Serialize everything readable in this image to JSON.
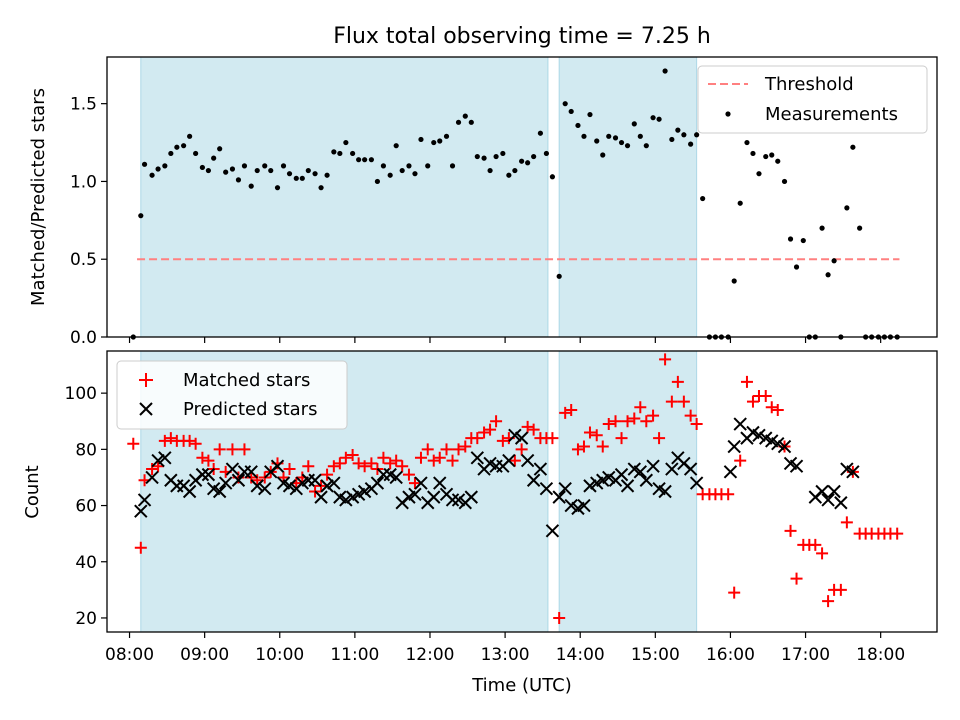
{
  "figure": {
    "title": "Flux total observing time = 7.25 h",
    "xlabel": "Time (UTC)"
  },
  "colors": {
    "shade": "#add8e6",
    "threshold": "#ff8080",
    "matched": "#ff0000",
    "predicted": "#000000",
    "measurement": "#000000"
  },
  "chart_data": [
    {
      "type": "scatter",
      "panel": "top",
      "ylabel": "Matched/Predicted stars",
      "ylim": [
        0,
        1.8
      ],
      "yticks": [
        0.0,
        0.5,
        1.0,
        1.5
      ],
      "ytick_labels": [
        "0.0",
        "0.5",
        "1.0",
        "1.5"
      ],
      "xlim": [
        7.7,
        18.75
      ],
      "shaded_intervals": [
        [
          8.15,
          13.57
        ],
        [
          13.72,
          15.55
        ]
      ],
      "legend_position": "top-right",
      "threshold": {
        "name": "Threshold",
        "value": 0.5,
        "x_range": [
          8.1,
          18.25
        ],
        "style": "dashed"
      },
      "series": [
        {
          "name": "Measurements",
          "x": [
            8.05,
            8.15,
            8.2,
            8.3,
            8.38,
            8.47,
            8.55,
            8.63,
            8.72,
            8.8,
            8.88,
            8.97,
            9.05,
            9.12,
            9.2,
            9.28,
            9.37,
            9.45,
            9.53,
            9.62,
            9.7,
            9.8,
            9.88,
            9.97,
            10.05,
            10.13,
            10.22,
            10.3,
            10.38,
            10.47,
            10.55,
            10.63,
            10.72,
            10.8,
            10.88,
            10.97,
            11.05,
            11.13,
            11.22,
            11.3,
            11.38,
            11.47,
            11.55,
            11.63,
            11.72,
            11.8,
            11.88,
            11.97,
            12.05,
            12.13,
            12.22,
            12.3,
            12.38,
            12.47,
            12.55,
            12.63,
            12.72,
            12.8,
            12.88,
            12.97,
            13.05,
            13.13,
            13.22,
            13.3,
            13.38,
            13.47,
            13.55,
            13.63,
            13.72,
            13.8,
            13.88,
            13.97,
            14.05,
            14.13,
            14.22,
            14.3,
            14.38,
            14.47,
            14.55,
            14.63,
            14.72,
            14.8,
            14.88,
            14.97,
            15.05,
            15.13,
            15.22,
            15.3,
            15.38,
            15.47,
            15.55,
            15.63,
            15.72,
            15.8,
            15.88,
            15.97,
            16.05,
            16.13,
            16.22,
            16.3,
            16.38,
            16.47,
            16.55,
            16.63,
            16.72,
            16.8,
            16.88,
            16.97,
            17.05,
            17.13,
            17.22,
            17.3,
            17.38,
            17.47,
            17.55,
            17.63,
            17.72,
            17.8,
            17.88,
            17.97,
            18.05,
            18.13,
            18.22
          ],
          "y": [
            0.0,
            0.78,
            1.11,
            1.04,
            1.08,
            1.1,
            1.18,
            1.22,
            1.23,
            1.29,
            1.18,
            1.09,
            1.07,
            1.15,
            1.21,
            1.06,
            1.08,
            1.01,
            1.1,
            0.97,
            1.07,
            1.1,
            1.07,
            0.96,
            1.1,
            1.05,
            1.02,
            1.02,
            1.07,
            1.05,
            0.96,
            1.04,
            1.19,
            1.18,
            1.25,
            1.18,
            1.14,
            1.14,
            1.14,
            1.0,
            1.1,
            1.04,
            1.23,
            1.07,
            1.1,
            1.05,
            1.27,
            1.1,
            1.25,
            1.26,
            1.29,
            1.1,
            1.38,
            1.42,
            1.38,
            1.16,
            1.15,
            1.07,
            1.16,
            1.18,
            1.04,
            1.07,
            1.13,
            1.12,
            1.16,
            1.31,
            1.18,
            1.03,
            0.39,
            1.5,
            1.45,
            1.36,
            1.29,
            1.43,
            1.26,
            1.17,
            1.29,
            1.28,
            1.25,
            1.23,
            1.37,
            1.29,
            1.23,
            1.41,
            1.4,
            1.71,
            1.27,
            1.33,
            1.3,
            1.24,
            1.3,
            0.89,
            0.0,
            0.0,
            0.0,
            0.0,
            0.36,
            0.86,
            1.25,
            1.18,
            1.05,
            1.16,
            1.17,
            1.13,
            1.0,
            0.63,
            0.45,
            0.62,
            0.0,
            0.0,
            0.7,
            0.4,
            0.49,
            0.0,
            0.83,
            1.22,
            0.7,
            0.0,
            0.0,
            0.0,
            0.0,
            0.0,
            0.0
          ]
        }
      ]
    },
    {
      "type": "scatter",
      "panel": "bottom",
      "ylabel": "Count",
      "ylim": [
        15,
        115
      ],
      "yticks": [
        20,
        40,
        60,
        80,
        100
      ],
      "ytick_labels": [
        "20",
        "40",
        "60",
        "80",
        "100"
      ],
      "xlim": [
        7.7,
        18.75
      ],
      "xticks": [
        8,
        9,
        10,
        11,
        12,
        13,
        14,
        15,
        16,
        17,
        18
      ],
      "xtick_labels": [
        "08:00",
        "09:00",
        "10:00",
        "11:00",
        "12:00",
        "13:00",
        "14:00",
        "15:00",
        "16:00",
        "17:00",
        "18:00"
      ],
      "shaded_intervals": [
        [
          8.15,
          13.57
        ],
        [
          13.72,
          15.55
        ]
      ],
      "legend_position": "top-left",
      "series": [
        {
          "name": "Matched stars",
          "marker": "plus",
          "x": [
            8.05,
            8.15,
            8.2,
            8.3,
            8.38,
            8.47,
            8.55,
            8.63,
            8.72,
            8.8,
            8.88,
            8.97,
            9.05,
            9.12,
            9.2,
            9.28,
            9.37,
            9.45,
            9.53,
            9.62,
            9.7,
            9.8,
            9.88,
            9.97,
            10.05,
            10.13,
            10.22,
            10.3,
            10.38,
            10.47,
            10.55,
            10.63,
            10.72,
            10.8,
            10.88,
            10.97,
            11.05,
            11.13,
            11.22,
            11.3,
            11.38,
            11.47,
            11.55,
            11.63,
            11.72,
            11.8,
            11.88,
            11.97,
            12.05,
            12.13,
            12.22,
            12.3,
            12.38,
            12.47,
            12.55,
            12.63,
            12.72,
            12.8,
            12.88,
            12.97,
            13.05,
            13.13,
            13.22,
            13.3,
            13.38,
            13.47,
            13.55,
            13.63,
            13.72,
            13.8,
            13.88,
            13.97,
            14.05,
            14.13,
            14.22,
            14.3,
            14.38,
            14.47,
            14.55,
            14.63,
            14.72,
            14.8,
            14.88,
            14.97,
            15.05,
            15.13,
            15.22,
            15.3,
            15.38,
            15.47,
            15.55,
            15.63,
            15.72,
            15.8,
            15.88,
            15.97,
            16.05,
            16.13,
            16.22,
            16.3,
            16.38,
            16.47,
            16.55,
            16.63,
            16.72,
            16.8,
            16.88,
            16.97,
            17.05,
            17.13,
            17.22,
            17.3,
            17.38,
            17.47,
            17.55,
            17.63,
            17.72,
            17.8,
            17.88,
            17.97,
            18.05,
            18.13,
            18.22
          ],
          "y": [
            82,
            45,
            69,
            73,
            74,
            83,
            84,
            83,
            83,
            83,
            82,
            77,
            76,
            73,
            80,
            72,
            80,
            70,
            80,
            70,
            69,
            70,
            72,
            75,
            70,
            73,
            68,
            70,
            74,
            65,
            67,
            71,
            74,
            75,
            77,
            78,
            75,
            74,
            75,
            73,
            77,
            75,
            76,
            74,
            71,
            68,
            77,
            80,
            76,
            77,
            80,
            76,
            80,
            81,
            84,
            84,
            86,
            87,
            90,
            83,
            84,
            76,
            80,
            88,
            87,
            84,
            84,
            84,
            20,
            93,
            94,
            80,
            81,
            86,
            85,
            81,
            89,
            90,
            84,
            90,
            91,
            95,
            90,
            92,
            84,
            112,
            97,
            104,
            97,
            92,
            89,
            64,
            64,
            64,
            64,
            64,
            29,
            76,
            104,
            97,
            99,
            99,
            95,
            94,
            81,
            51,
            34,
            46,
            46,
            46,
            43,
            26,
            30,
            30,
            54,
            72,
            50,
            50,
            50,
            50,
            50,
            50,
            50
          ]
        },
        {
          "name": "Predicted stars",
          "marker": "x",
          "x": [
            8.15,
            8.2,
            8.3,
            8.38,
            8.47,
            8.55,
            8.63,
            8.72,
            8.8,
            8.88,
            8.97,
            9.05,
            9.12,
            9.2,
            9.28,
            9.37,
            9.45,
            9.53,
            9.62,
            9.7,
            9.8,
            9.88,
            9.97,
            10.05,
            10.13,
            10.22,
            10.3,
            10.38,
            10.47,
            10.55,
            10.63,
            10.72,
            10.8,
            10.88,
            10.97,
            11.05,
            11.13,
            11.22,
            11.3,
            11.38,
            11.47,
            11.55,
            11.63,
            11.72,
            11.8,
            11.88,
            11.97,
            12.05,
            12.13,
            12.22,
            12.3,
            12.38,
            12.47,
            12.55,
            12.63,
            12.72,
            12.8,
            12.88,
            12.97,
            13.05,
            13.13,
            13.22,
            13.3,
            13.38,
            13.47,
            13.55,
            13.63,
            13.72,
            13.8,
            13.88,
            13.97,
            14.05,
            14.13,
            14.22,
            14.3,
            14.38,
            14.47,
            14.55,
            14.63,
            14.72,
            14.8,
            14.88,
            14.97,
            15.05,
            15.13,
            15.22,
            15.3,
            15.38,
            15.47,
            15.55,
            16.0,
            16.05,
            16.13,
            16.22,
            16.3,
            16.38,
            16.47,
            16.55,
            16.63,
            16.72,
            16.8,
            16.88,
            17.13,
            17.22,
            17.3,
            17.38,
            17.47,
            17.55,
            17.63
          ],
          "y": [
            58,
            62,
            70,
            76,
            77,
            69,
            67,
            67,
            65,
            69,
            71,
            71,
            66,
            65,
            68,
            73,
            69,
            72,
            72,
            67,
            66,
            72,
            74,
            68,
            67,
            66,
            68,
            69,
            69,
            63,
            67,
            68,
            63,
            62,
            63,
            64,
            65,
            66,
            68,
            71,
            71,
            70,
            61,
            63,
            64,
            68,
            61,
            63,
            68,
            64,
            62,
            62,
            61,
            63,
            77,
            73,
            75,
            74,
            74,
            76,
            85,
            84,
            76,
            69,
            73,
            66,
            51,
            63,
            66,
            60,
            59,
            60,
            67,
            68,
            69,
            70,
            69,
            71,
            67,
            73,
            72,
            69,
            74,
            66,
            65,
            73,
            77,
            75,
            73,
            68,
            72,
            81,
            89,
            84,
            86,
            85,
            84,
            83,
            82,
            81,
            75,
            74,
            63,
            65,
            62,
            65,
            61,
            73,
            72
          ]
        }
      ]
    }
  ]
}
